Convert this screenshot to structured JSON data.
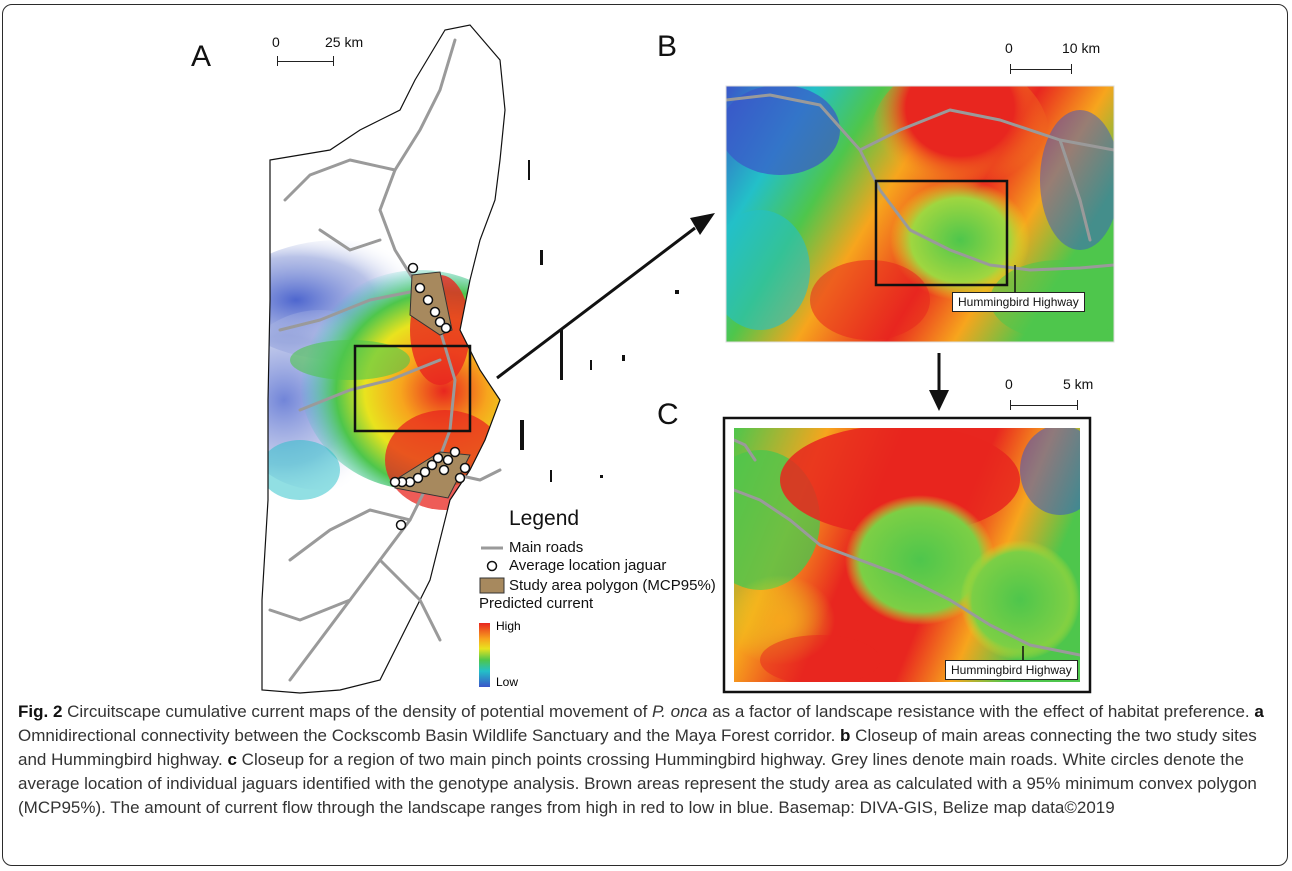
{
  "panels": {
    "a": {
      "letter": "A",
      "scale": {
        "zero": "0",
        "end": "25 km"
      }
    },
    "b": {
      "letter": "B",
      "scale": {
        "zero": "0",
        "end": "10 km"
      },
      "road_label": "Hummingbird Highway"
    },
    "c": {
      "letter": "C",
      "scale": {
        "zero": "0",
        "end": "5 km"
      },
      "road_label": "Hummingbird Highway"
    }
  },
  "legend": {
    "title": "Legend",
    "items": [
      {
        "label": "Main roads",
        "symbol": "grey-line"
      },
      {
        "label": "Average location jaguar",
        "symbol": "white-circle"
      },
      {
        "label": "Study area polygon (MCP95%)",
        "symbol": "brown-fill"
      }
    ],
    "current_title": "Predicted current",
    "ramp_high": "High",
    "ramp_low": "Low"
  },
  "colors": {
    "high": "#e8261f",
    "mid_high": "#f7a51d",
    "mid": "#e9e31e",
    "mid_low": "#4ec64c",
    "low_cyan": "#23c0c8",
    "low": "#3a55c9",
    "road": "#9a9a9a",
    "study_area": "#a7895e"
  },
  "caption": {
    "fig_label": "Fig. 2",
    "intro": " Circuitscape cumulative current maps of the density of potential movement of ",
    "species": "P. onca",
    "after_species": " as a factor of landscape resistance with the effect of habitat preference. ",
    "a_label": "a",
    "a_text": " Omnidirectional connectivity between the Cockscomb Basin Wildlife Sanctuary and the Maya Forest corridor. ",
    "b_label": "b",
    "b_text": " Closeup of main areas connecting the two study sites and Hummingbird highway. ",
    "c_label": "c",
    "c_text": " Closeup for a region of two main pinch points crossing Hummingbird highway. Grey lines denote main roads. White circles denote the average location of individual jaguars identified with the genotype analysis. Brown areas represent the study area as calculated with a 95% minimum convex polygon (MCP95%). The amount of current flow through the landscape ranges from high in red to low in blue. Basemap: DIVA-GIS, Belize map data©2019"
  }
}
